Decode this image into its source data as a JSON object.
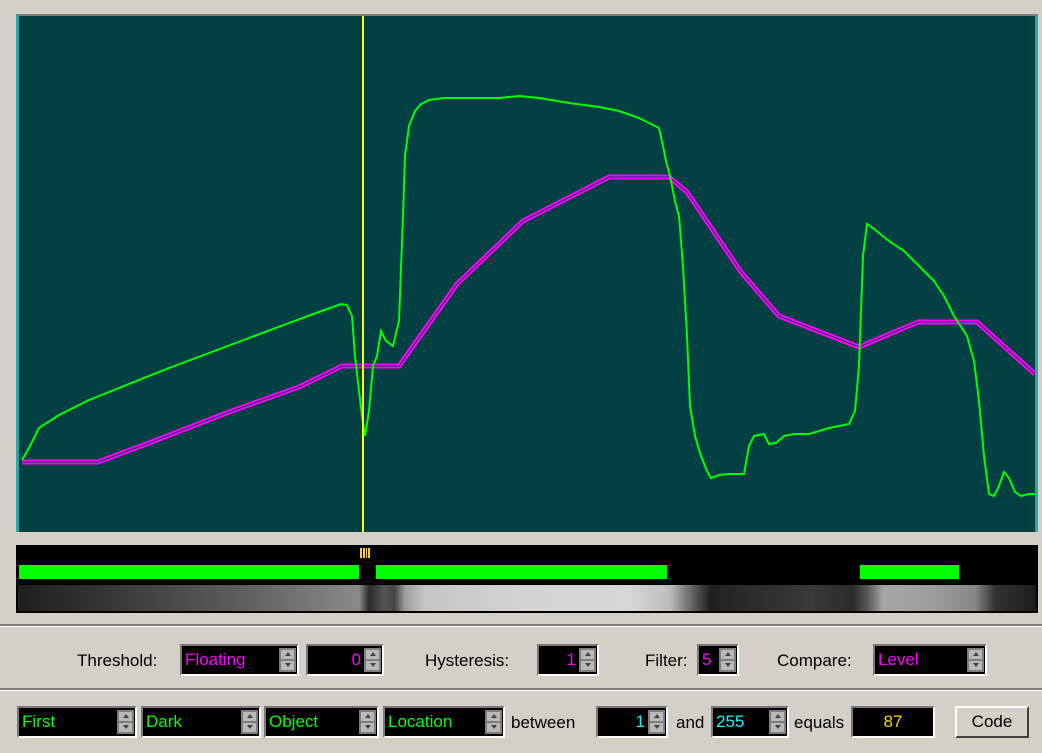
{
  "graph": {
    "colors": {
      "background": "#024044",
      "signal": "#00ff00",
      "threshold": "#ff00ff",
      "cursor": "#ffff00"
    }
  },
  "threshold_row": {
    "threshold_label": "Threshold:",
    "threshold_mode": "Floating",
    "threshold_offset": "0",
    "hysteresis_label": "Hysteresis:",
    "hysteresis_value": "1",
    "filter_label": "Filter:",
    "filter_value": "5",
    "compare_label": "Compare:",
    "compare_value": "Level"
  },
  "measure_row": {
    "order": "First",
    "polarity": "Dark",
    "target": "Object",
    "measure": "Location",
    "between_label": "between",
    "from_value": "1",
    "and_label": "and",
    "to_value": "255",
    "equals_label": "equals",
    "result": "87",
    "code_button": "Code"
  }
}
